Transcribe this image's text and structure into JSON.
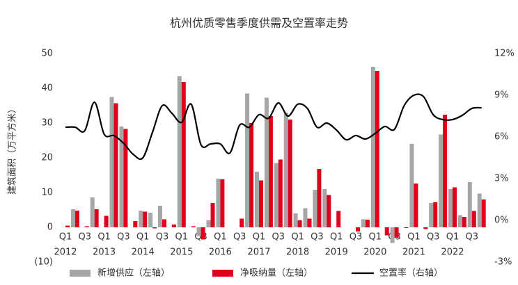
{
  "chart_data": {
    "type": "bar_line",
    "title": "杭州优质零售季度供需及空置率走势",
    "y_label": "建筑面积（万平方米）",
    "categories": [
      "Q1",
      null,
      "Q3",
      null,
      "Q1",
      null,
      "Q3",
      null,
      "Q1",
      null,
      "Q3",
      null,
      "Q1",
      null,
      "Q3",
      null,
      "Q1",
      null,
      "Q3",
      null,
      "Q1",
      null,
      "Q3",
      null,
      "Q1",
      null,
      "Q3",
      null,
      "Q1",
      null,
      "Q3",
      null,
      "Q1",
      null,
      "Q3",
      null,
      "Q1",
      null,
      "Q3",
      null,
      "Q1",
      null,
      "Q3",
      null
    ],
    "years": [
      "2012",
      "2013",
      "2014",
      "2015",
      "2016",
      "2017",
      "2018",
      "2019",
      "2020",
      "2021",
      "2022"
    ],
    "ylim": [
      -10,
      50
    ],
    "yticks": [
      {
        "value": -10,
        "label": "(10)"
      },
      0,
      10,
      20,
      30,
      40,
      50
    ],
    "y2lim": [
      -3,
      12
    ],
    "y2ticks": [
      {
        "value": -3,
        "label": "-3%"
      },
      {
        "value": 0,
        "label": "0%"
      },
      {
        "value": 3,
        "label": "3%"
      },
      {
        "value": 6,
        "label": "6%"
      },
      {
        "value": 9,
        "label": "9%"
      },
      {
        "value": 12,
        "label": "12%"
      }
    ],
    "legend": "bottom",
    "series": [
      {
        "name": "新增供应（左轴）",
        "type": "bar",
        "color": "#a6a6a6",
        "values": [
          0,
          5.2,
          0,
          8.6,
          0,
          37.5,
          29,
          0,
          4.8,
          4.2,
          6.2,
          0,
          43.5,
          0,
          -2.5,
          2,
          14,
          0,
          0,
          38.5,
          16,
          37.3,
          18.5,
          33,
          4,
          5.5,
          10.8,
          11,
          0,
          0,
          0,
          2.3,
          46.2,
          0,
          -4.5,
          0,
          24,
          0,
          7,
          26.7,
          11,
          3.5,
          13,
          9.7
        ]
      },
      {
        "name": "净吸纳量（左轴）",
        "type": "bar",
        "color": "#e0001b",
        "values": [
          0.5,
          4.8,
          0.3,
          5.2,
          3.3,
          35.7,
          28.3,
          1.8,
          4.5,
          -0.3,
          2.3,
          0.8,
          41.8,
          0.3,
          -3.5,
          7,
          13.8,
          0,
          2.5,
          30,
          13.5,
          32,
          19.5,
          31,
          2,
          2.5,
          16.8,
          9.3,
          4.7,
          0,
          -1.2,
          2.2,
          45,
          -2.3,
          -3,
          -0.2,
          12.6,
          -0.5,
          7.2,
          32.4,
          11.5,
          3,
          4.7,
          8
        ]
      },
      {
        "name": "空置率（右轴）",
        "type": "line",
        "axis": "y2",
        "color": "#000000",
        "values": [
          6.7,
          6.7,
          6.45,
          8.5,
          6.2,
          6.1,
          5.55,
          4.75,
          4.5,
          6.35,
          8.25,
          7.7,
          7.05,
          8.35,
          5.45,
          5.5,
          5.5,
          4.85,
          6.85,
          6.7,
          7.6,
          7.35,
          8.45,
          7.5,
          8.35,
          8.05,
          6.7,
          7.0,
          6.5,
          5.8,
          6.1,
          5.85,
          6.25,
          6.75,
          6.55,
          8.25,
          9.0,
          8.9,
          7.6,
          7.25,
          7.25,
          7.55,
          8.05,
          8.1
        ]
      }
    ]
  }
}
